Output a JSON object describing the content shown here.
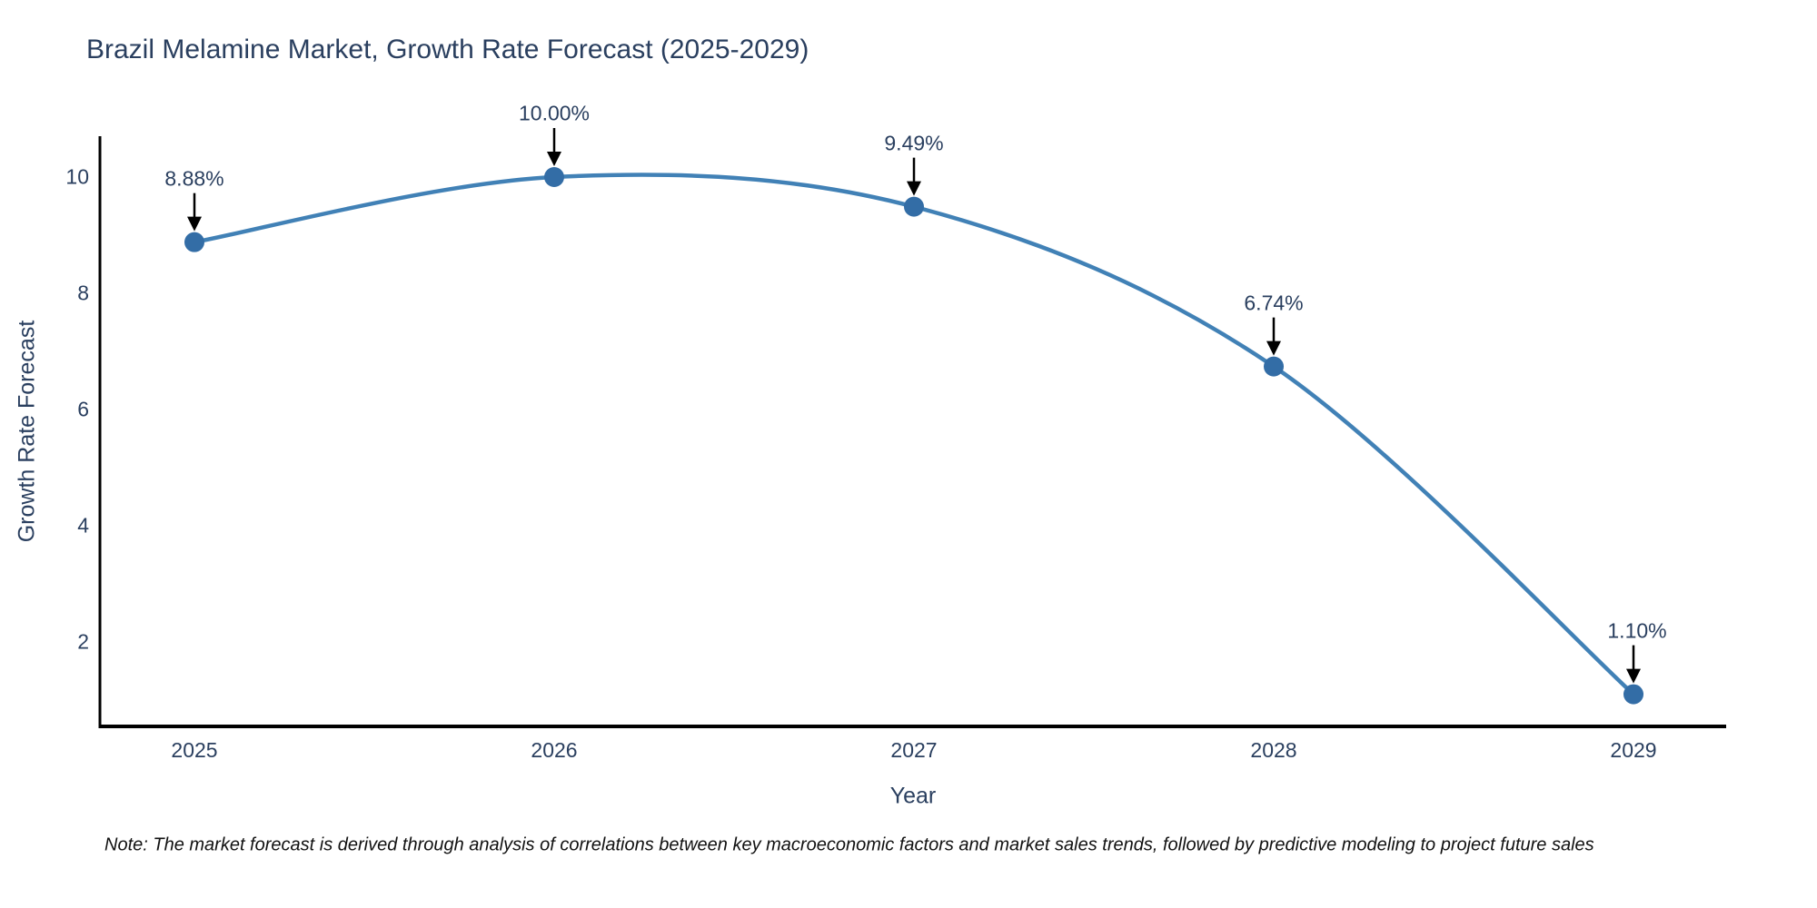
{
  "title": "Brazil Melamine Market, Growth Rate Forecast (2025-2029)",
  "note": "Note: The market forecast is derived through analysis of correlations between key macroeconomic factors and market sales trends, followed by predictive modeling to project future sales",
  "chart_data": {
    "type": "line",
    "line_shape": "spline",
    "title": "Brazil Melamine Market, Growth Rate Forecast (2025-2029)",
    "xlabel": "Year",
    "ylabel": "Growth Rate Forecast",
    "categories": [
      2025,
      2026,
      2027,
      2028,
      2029
    ],
    "series": [
      {
        "name": "Growth Rate Forecast",
        "values": [
          8.88,
          10.0,
          9.49,
          6.74,
          1.1
        ],
        "point_labels": [
          "8.88%",
          "10.00%",
          "9.49%",
          "6.74%",
          "1.10%"
        ]
      }
    ],
    "xtick_labels": [
      "2025",
      "2026",
      "2027",
      "2028",
      "2029"
    ],
    "ytick_values": [
      2,
      4,
      6,
      8,
      10
    ],
    "ytick_labels": [
      "2",
      "4",
      "6",
      "8",
      "10"
    ],
    "ylim": [
      0.55,
      10.7
    ],
    "grid": false,
    "legend_position": "none",
    "annotation_arrow": "down",
    "colors": {
      "line": "#4181b6",
      "marker": "#336da6",
      "axis_line": "#000000",
      "text": "#2a3f5f",
      "arrow": "#000000",
      "background": "#ffffff"
    }
  }
}
